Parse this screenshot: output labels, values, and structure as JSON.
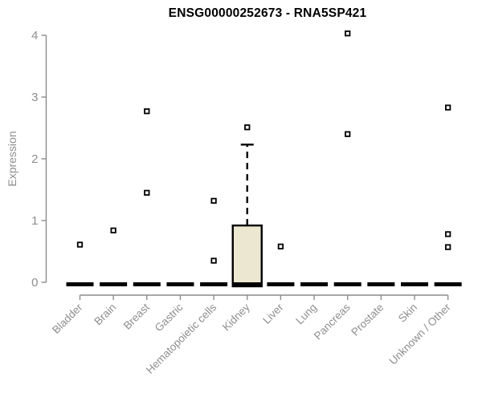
{
  "chart_data": {
    "type": "boxplot",
    "title": "ENSG00000252673 - RNA5SP421",
    "ylabel": "Expression",
    "xlabel": "",
    "ylim": [
      0,
      4
    ],
    "yticks": [
      0,
      1,
      2,
      3,
      4
    ],
    "grid": false,
    "legend": null,
    "categories": [
      "Bladder",
      "Brain",
      "Breast",
      "Gastric",
      "Hematopoietic cells",
      "Kidney",
      "Liver",
      "Lung",
      "Pancreas",
      "Prostate",
      "Skin",
      "Unknown / Other"
    ],
    "series": [
      {
        "category": "Bladder",
        "median": 0,
        "q1": 0,
        "q3": 0,
        "whisker_low": 0,
        "whisker_high": 0,
        "outliers": [
          0.61
        ]
      },
      {
        "category": "Brain",
        "median": 0,
        "q1": 0,
        "q3": 0,
        "whisker_low": 0,
        "whisker_high": 0,
        "outliers": [
          0.84
        ]
      },
      {
        "category": "Breast",
        "median": 0,
        "q1": 0,
        "q3": 0,
        "whisker_low": 0,
        "whisker_high": 0,
        "outliers": [
          2.77,
          1.45
        ]
      },
      {
        "category": "Gastric",
        "median": 0,
        "q1": 0,
        "q3": 0,
        "whisker_low": 0,
        "whisker_high": 0,
        "outliers": []
      },
      {
        "category": "Hematopoietic cells",
        "median": 0,
        "q1": 0,
        "q3": 0,
        "whisker_low": 0,
        "whisker_high": 0,
        "outliers": [
          1.32,
          0.35
        ]
      },
      {
        "category": "Kidney",
        "median": 0,
        "q1": 0,
        "q3": 0.92,
        "whisker_low": 0,
        "whisker_high": 2.23,
        "outliers": [
          2.51
        ]
      },
      {
        "category": "Liver",
        "median": 0,
        "q1": 0,
        "q3": 0,
        "whisker_low": 0,
        "whisker_high": 0,
        "outliers": [
          0.58
        ]
      },
      {
        "category": "Lung",
        "median": 0,
        "q1": 0,
        "q3": 0,
        "whisker_low": 0,
        "whisker_high": 0,
        "outliers": []
      },
      {
        "category": "Pancreas",
        "median": 0,
        "q1": 0,
        "q3": 0,
        "whisker_low": 0,
        "whisker_high": 0,
        "outliers": [
          4.03,
          2.4
        ]
      },
      {
        "category": "Prostate",
        "median": 0,
        "q1": 0,
        "q3": 0,
        "whisker_low": 0,
        "whisker_high": 0,
        "outliers": []
      },
      {
        "category": "Skin",
        "median": 0,
        "q1": 0,
        "q3": 0,
        "whisker_low": 0,
        "whisker_high": 0,
        "outliers": []
      },
      {
        "category": "Unknown / Other",
        "median": 0,
        "q1": 0,
        "q3": 0,
        "whisker_low": 0,
        "whisker_high": 0,
        "outliers": [
          2.83,
          0.78,
          0.57
        ]
      }
    ],
    "colors": {
      "box_fill": "#ece7d1",
      "box_stroke": "#000000",
      "median": "#000000",
      "outlier_stroke": "#000000",
      "outlier_fill": "#ffffff",
      "axis": "#8c8c8c",
      "tick_label": "#8e8e8e",
      "title": "#000000",
      "background": "#ffffff"
    }
  }
}
